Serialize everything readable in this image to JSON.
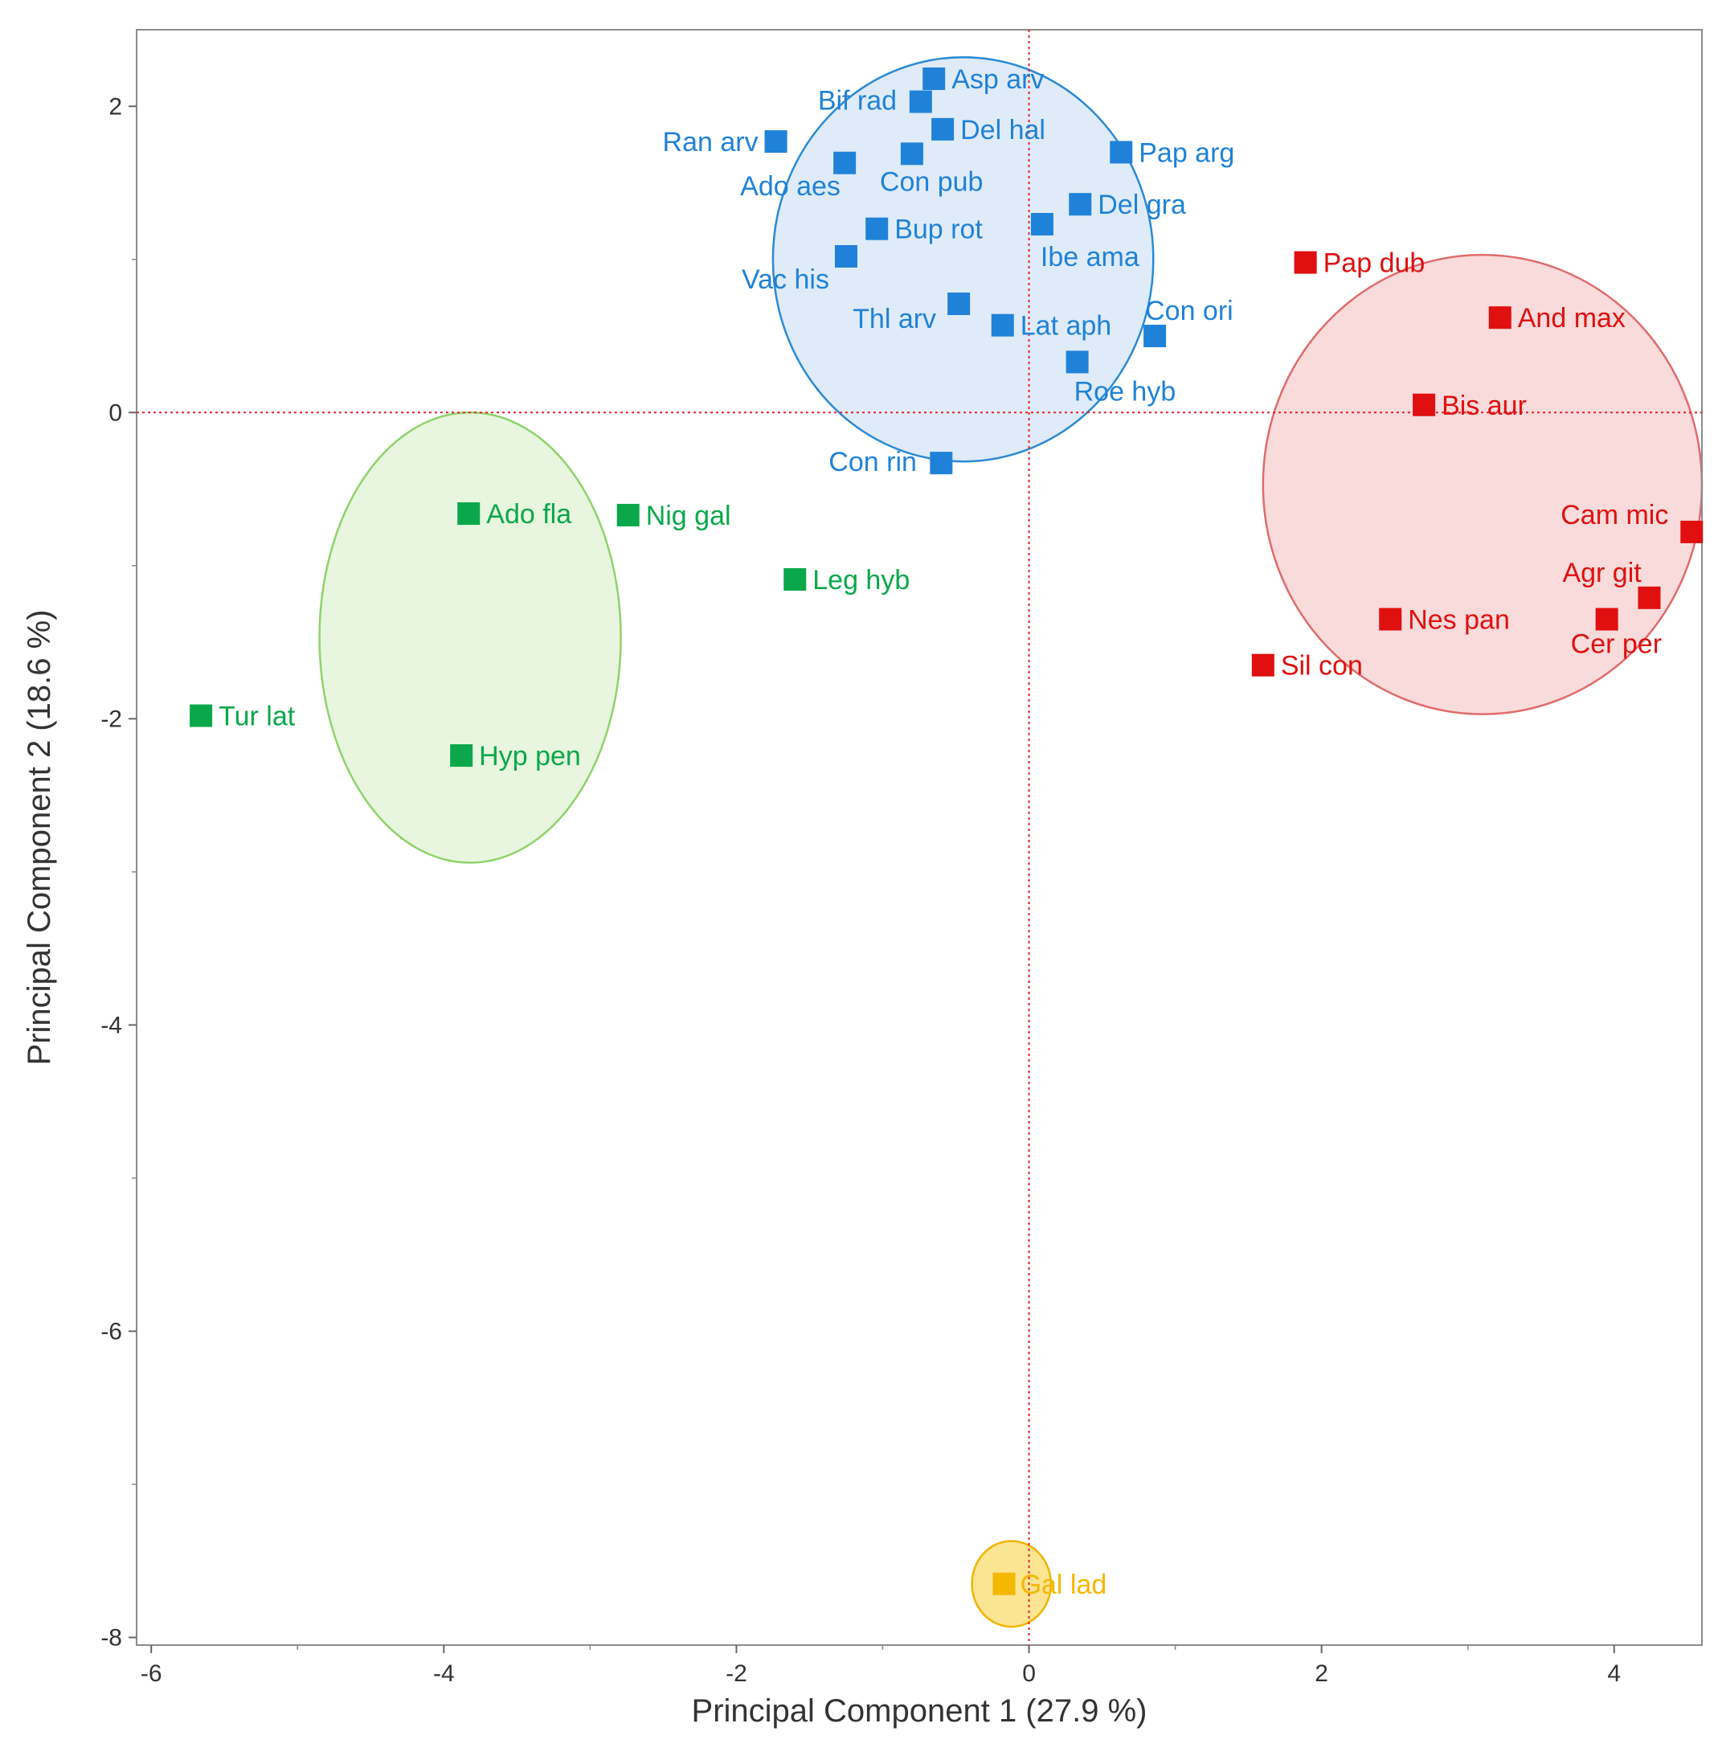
{
  "chart_data": {
    "type": "scatter",
    "title": "",
    "xlabel": "Principal Component 1  (27.9 %)",
    "ylabel": "Principal Component 2  (18.6 %)",
    "xlim": [
      -6.1,
      4.6
    ],
    "ylim": [
      -8.05,
      2.5
    ],
    "x_ticks": [
      -6,
      -4,
      -2,
      0,
      2,
      4
    ],
    "y_ticks": [
      2,
      0,
      -2,
      -4,
      -6,
      -8
    ],
    "reference_lines": {
      "x": 0,
      "y": 0
    },
    "groups": [
      {
        "name": "blue",
        "color": "#1f82d8",
        "fill": "#dbe9f7",
        "stroke": "#2a8ad6",
        "ellipse": {
          "cx": -0.45,
          "cy": 1.0,
          "rx": 1.3,
          "ry": 1.32
        }
      },
      {
        "name": "red",
        "color": "#e01010",
        "fill": "#f8d7d7",
        "stroke": "#e06b6b",
        "ellipse": {
          "cx": 3.1,
          "cy": -0.47,
          "rx": 1.5,
          "ry": 1.5
        }
      },
      {
        "name": "green",
        "color": "#0aa84a",
        "fill": "#e6f5dc",
        "stroke": "#8ed36a",
        "ellipse": {
          "cx": -3.82,
          "cy": -1.47,
          "rx": 1.03,
          "ry": 1.47
        }
      },
      {
        "name": "orange",
        "color": "#f5b800",
        "fill": "#fadb6e",
        "stroke": "#f0b400",
        "ellipse": {
          "cx": -0.12,
          "cy": -7.65,
          "rx": 0.27,
          "ry": 0.28
        }
      }
    ],
    "points": [
      {
        "label": "Asp arv",
        "x": -0.65,
        "y": 2.18,
        "group": "blue"
      },
      {
        "label": "Bif rad",
        "x": -0.74,
        "y": 2.03,
        "group": "blue"
      },
      {
        "label": "Del hal",
        "x": -0.59,
        "y": 1.85,
        "group": "blue"
      },
      {
        "label": "Ran arv",
        "x": -1.73,
        "y": 1.77,
        "group": "blue"
      },
      {
        "label": "Pap arg",
        "x": 0.63,
        "y": 1.7,
        "group": "blue"
      },
      {
        "label": "Con pub",
        "x": -0.8,
        "y": 1.69,
        "group": "blue"
      },
      {
        "label": "Ado aes",
        "x": -1.26,
        "y": 1.63,
        "group": "blue"
      },
      {
        "label": "Del gra",
        "x": 0.35,
        "y": 1.36,
        "group": "blue"
      },
      {
        "label": "Bup rot",
        "x": -1.04,
        "y": 1.2,
        "group": "blue"
      },
      {
        "label": "Ibe ama",
        "x": 0.09,
        "y": 1.23,
        "group": "blue"
      },
      {
        "label": "Vac his",
        "x": -1.25,
        "y": 1.02,
        "group": "blue"
      },
      {
        "label": "Thl arv",
        "x": -0.48,
        "y": 0.71,
        "group": "blue"
      },
      {
        "label": "Lat aph",
        "x": -0.18,
        "y": 0.57,
        "group": "blue"
      },
      {
        "label": "Con ori",
        "x": 0.86,
        "y": 0.5,
        "group": "blue"
      },
      {
        "label": "Roe hyb",
        "x": 0.33,
        "y": 0.33,
        "group": "blue"
      },
      {
        "label": "Con rin",
        "x": -0.6,
        "y": -0.33,
        "group": "blue"
      },
      {
        "label": "Pap dub",
        "x": 1.89,
        "y": 0.98,
        "group": "red"
      },
      {
        "label": "And max",
        "x": 3.22,
        "y": 0.62,
        "group": "red"
      },
      {
        "label": "Bis aur",
        "x": 2.7,
        "y": 0.05,
        "group": "red"
      },
      {
        "label": "Cam mic",
        "x": 4.53,
        "y": -0.78,
        "group": "red"
      },
      {
        "label": "Agr git",
        "x": 4.24,
        "y": -1.21,
        "group": "red"
      },
      {
        "label": "Nes pan",
        "x": 2.47,
        "y": -1.35,
        "group": "red"
      },
      {
        "label": "Cer per",
        "x": 3.95,
        "y": -1.35,
        "group": "red"
      },
      {
        "label": "Sil con",
        "x": 1.6,
        "y": -1.65,
        "group": "red"
      },
      {
        "label": "Ado fla",
        "x": -3.83,
        "y": -0.66,
        "group": "green"
      },
      {
        "label": "Nig gal",
        "x": -2.74,
        "y": -0.67,
        "group": "green"
      },
      {
        "label": "Leg hyb",
        "x": -1.6,
        "y": -1.09,
        "group": "green"
      },
      {
        "label": "Tur lat",
        "x": -5.66,
        "y": -1.98,
        "group": "green"
      },
      {
        "label": "Hyp pen",
        "x": -3.88,
        "y": -2.24,
        "group": "green"
      },
      {
        "label": "Gal lad",
        "x": -0.17,
        "y": -7.65,
        "group": "orange"
      }
    ]
  }
}
